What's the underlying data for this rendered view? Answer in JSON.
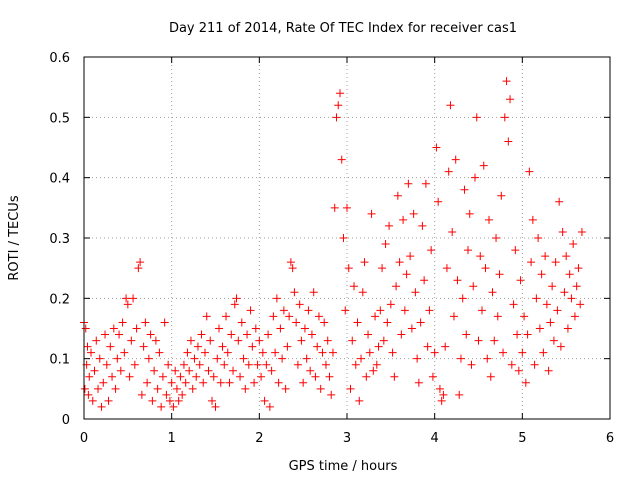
{
  "chart_data": {
    "type": "scatter",
    "title": "Day 211 of 2014, Rate Of TEC Index for receiver cas1",
    "xlabel": "GPS time / hours",
    "ylabel": "ROTI / TECUs",
    "xlim": [
      0,
      6
    ],
    "ylim": [
      0,
      0.6
    ],
    "xticks": [
      0,
      1,
      2,
      3,
      4,
      5,
      6
    ],
    "yticks": [
      0,
      0.1,
      0.2,
      0.3,
      0.4,
      0.5,
      0.6
    ],
    "xtick_labels": [
      "0",
      "1",
      "2",
      "3",
      "4",
      "5",
      "6"
    ],
    "ytick_labels": [
      "0",
      "0.1",
      "0.2",
      "0.3",
      "0.4",
      "0.5",
      "0.6"
    ],
    "grid": true,
    "marker": "+",
    "color": "#ff0000",
    "series": [
      {
        "name": "cas1",
        "points": [
          [
            0.0,
            0.16
          ],
          [
            0.01,
            0.05
          ],
          [
            0.02,
            0.15
          ],
          [
            0.03,
            0.09
          ],
          [
            0.04,
            0.12
          ],
          [
            0.05,
            0.04
          ],
          [
            0.06,
            0.07
          ],
          [
            0.08,
            0.11
          ],
          [
            0.1,
            0.03
          ],
          [
            0.12,
            0.08
          ],
          [
            0.14,
            0.13
          ],
          [
            0.16,
            0.05
          ],
          [
            0.18,
            0.1
          ],
          [
            0.2,
            0.02
          ],
          [
            0.22,
            0.06
          ],
          [
            0.24,
            0.14
          ],
          [
            0.26,
            0.09
          ],
          [
            0.28,
            0.03
          ],
          [
            0.3,
            0.12
          ],
          [
            0.32,
            0.07
          ],
          [
            0.34,
            0.15
          ],
          [
            0.36,
            0.05
          ],
          [
            0.38,
            0.1
          ],
          [
            0.4,
            0.14
          ],
          [
            0.42,
            0.08
          ],
          [
            0.44,
            0.16
          ],
          [
            0.46,
            0.11
          ],
          [
            0.48,
            0.2
          ],
          [
            0.5,
            0.19
          ],
          [
            0.52,
            0.07
          ],
          [
            0.54,
            0.13
          ],
          [
            0.56,
            0.2
          ],
          [
            0.58,
            0.09
          ],
          [
            0.6,
            0.15
          ],
          [
            0.62,
            0.25
          ],
          [
            0.64,
            0.26
          ],
          [
            0.66,
            0.04
          ],
          [
            0.68,
            0.12
          ],
          [
            0.7,
            0.16
          ],
          [
            0.72,
            0.06
          ],
          [
            0.74,
            0.1
          ],
          [
            0.76,
            0.14
          ],
          [
            0.78,
            0.03
          ],
          [
            0.8,
            0.08
          ],
          [
            0.82,
            0.13
          ],
          [
            0.84,
            0.05
          ],
          [
            0.86,
            0.11
          ],
          [
            0.88,
            0.02
          ],
          [
            0.9,
            0.07
          ],
          [
            0.92,
            0.16
          ],
          [
            0.94,
            0.04
          ],
          [
            0.96,
            0.09
          ],
          [
            0.98,
            0.03
          ],
          [
            1.0,
            0.06
          ],
          [
            1.02,
            0.02
          ],
          [
            1.04,
            0.08
          ],
          [
            1.06,
            0.05
          ],
          [
            1.08,
            0.03
          ],
          [
            1.1,
            0.07
          ],
          [
            1.12,
            0.04
          ],
          [
            1.14,
            0.09
          ],
          [
            1.16,
            0.06
          ],
          [
            1.18,
            0.11
          ],
          [
            1.2,
            0.08
          ],
          [
            1.22,
            0.13
          ],
          [
            1.24,
            0.05
          ],
          [
            1.26,
            0.1
          ],
          [
            1.28,
            0.07
          ],
          [
            1.3,
            0.12
          ],
          [
            1.32,
            0.09
          ],
          [
            1.34,
            0.14
          ],
          [
            1.36,
            0.06
          ],
          [
            1.38,
            0.11
          ],
          [
            1.4,
            0.17
          ],
          [
            1.42,
            0.08
          ],
          [
            1.44,
            0.13
          ],
          [
            1.46,
            0.03
          ],
          [
            1.48,
            0.07
          ],
          [
            1.5,
            0.02
          ],
          [
            1.52,
            0.1
          ],
          [
            1.54,
            0.15
          ],
          [
            1.56,
            0.06
          ],
          [
            1.58,
            0.12
          ],
          [
            1.6,
            0.09
          ],
          [
            1.62,
            0.17
          ],
          [
            1.64,
            0.11
          ],
          [
            1.66,
            0.06
          ],
          [
            1.68,
            0.14
          ],
          [
            1.7,
            0.08
          ],
          [
            1.72,
            0.19
          ],
          [
            1.74,
            0.2
          ],
          [
            1.76,
            0.13
          ],
          [
            1.78,
            0.07
          ],
          [
            1.8,
            0.16
          ],
          [
            1.82,
            0.1
          ],
          [
            1.84,
            0.05
          ],
          [
            1.86,
            0.14
          ],
          [
            1.88,
            0.09
          ],
          [
            1.9,
            0.18
          ],
          [
            1.92,
            0.12
          ],
          [
            1.94,
            0.06
          ],
          [
            1.96,
            0.15
          ],
          [
            1.98,
            0.09
          ],
          [
            2.0,
            0.13
          ],
          [
            2.02,
            0.07
          ],
          [
            2.04,
            0.11
          ],
          [
            2.06,
            0.03
          ],
          [
            2.08,
            0.09
          ],
          [
            2.1,
            0.14
          ],
          [
            2.12,
            0.02
          ],
          [
            2.14,
            0.08
          ],
          [
            2.16,
            0.17
          ],
          [
            2.18,
            0.11
          ],
          [
            2.2,
            0.2
          ],
          [
            2.22,
            0.06
          ],
          [
            2.24,
            0.15
          ],
          [
            2.26,
            0.1
          ],
          [
            2.28,
            0.18
          ],
          [
            2.3,
            0.05
          ],
          [
            2.32,
            0.12
          ],
          [
            2.34,
            0.17
          ],
          [
            2.36,
            0.26
          ],
          [
            2.38,
            0.25
          ],
          [
            2.4,
            0.21
          ],
          [
            2.42,
            0.16
          ],
          [
            2.44,
            0.09
          ],
          [
            2.46,
            0.19
          ],
          [
            2.48,
            0.13
          ],
          [
            2.5,
            0.06
          ],
          [
            2.52,
            0.15
          ],
          [
            2.54,
            0.1
          ],
          [
            2.56,
            0.18
          ],
          [
            2.58,
            0.08
          ],
          [
            2.6,
            0.14
          ],
          [
            2.62,
            0.21
          ],
          [
            2.64,
            0.07
          ],
          [
            2.66,
            0.12
          ],
          [
            2.68,
            0.17
          ],
          [
            2.7,
            0.05
          ],
          [
            2.72,
            0.11
          ],
          [
            2.74,
            0.16
          ],
          [
            2.76,
            0.09
          ],
          [
            2.78,
            0.13
          ],
          [
            2.8,
            0.07
          ],
          [
            2.82,
            0.04
          ],
          [
            2.84,
            0.11
          ],
          [
            2.86,
            0.35
          ],
          [
            2.88,
            0.5
          ],
          [
            2.9,
            0.52
          ],
          [
            2.92,
            0.54
          ],
          [
            2.94,
            0.43
          ],
          [
            2.96,
            0.3
          ],
          [
            2.98,
            0.18
          ],
          [
            3.0,
            0.35
          ],
          [
            3.02,
            0.25
          ],
          [
            3.04,
            0.05
          ],
          [
            3.06,
            0.13
          ],
          [
            3.08,
            0.22
          ],
          [
            3.1,
            0.09
          ],
          [
            3.12,
            0.16
          ],
          [
            3.14,
            0.03
          ],
          [
            3.16,
            0.1
          ],
          [
            3.18,
            0.21
          ],
          [
            3.2,
            0.26
          ],
          [
            3.22,
            0.07
          ],
          [
            3.24,
            0.14
          ],
          [
            3.26,
            0.11
          ],
          [
            3.28,
            0.34
          ],
          [
            3.3,
            0.08
          ],
          [
            3.32,
            0.17
          ],
          [
            3.34,
            0.09
          ],
          [
            3.36,
            0.12
          ],
          [
            3.38,
            0.18
          ],
          [
            3.4,
            0.25
          ],
          [
            3.42,
            0.13
          ],
          [
            3.44,
            0.29
          ],
          [
            3.46,
            0.16
          ],
          [
            3.48,
            0.32
          ],
          [
            3.5,
            0.19
          ],
          [
            3.52,
            0.11
          ],
          [
            3.54,
            0.07
          ],
          [
            3.56,
            0.22
          ],
          [
            3.58,
            0.37
          ],
          [
            3.6,
            0.26
          ],
          [
            3.62,
            0.14
          ],
          [
            3.64,
            0.33
          ],
          [
            3.66,
            0.18
          ],
          [
            3.68,
            0.24
          ],
          [
            3.7,
            0.39
          ],
          [
            3.72,
            0.27
          ],
          [
            3.74,
            0.15
          ],
          [
            3.76,
            0.34
          ],
          [
            3.78,
            0.21
          ],
          [
            3.8,
            0.1
          ],
          [
            3.82,
            0.06
          ],
          [
            3.84,
            0.16
          ],
          [
            3.86,
            0.32
          ],
          [
            3.88,
            0.23
          ],
          [
            3.9,
            0.39
          ],
          [
            3.92,
            0.12
          ],
          [
            3.94,
            0.18
          ],
          [
            3.96,
            0.28
          ],
          [
            3.98,
            0.07
          ],
          [
            4.0,
            0.11
          ],
          [
            4.02,
            0.45
          ],
          [
            4.04,
            0.36
          ],
          [
            4.06,
            0.05
          ],
          [
            4.08,
            0.03
          ],
          [
            4.1,
            0.04
          ],
          [
            4.12,
            0.12
          ],
          [
            4.14,
            0.25
          ],
          [
            4.16,
            0.41
          ],
          [
            4.18,
            0.52
          ],
          [
            4.2,
            0.31
          ],
          [
            4.22,
            0.17
          ],
          [
            4.24,
            0.43
          ],
          [
            4.26,
            0.23
          ],
          [
            4.28,
            0.04
          ],
          [
            4.3,
            0.1
          ],
          [
            4.32,
            0.2
          ],
          [
            4.34,
            0.38
          ],
          [
            4.36,
            0.14
          ],
          [
            4.38,
            0.28
          ],
          [
            4.4,
            0.34
          ],
          [
            4.42,
            0.09
          ],
          [
            4.44,
            0.22
          ],
          [
            4.46,
            0.4
          ],
          [
            4.48,
            0.5
          ],
          [
            4.5,
            0.13
          ],
          [
            4.52,
            0.27
          ],
          [
            4.54,
            0.18
          ],
          [
            4.56,
            0.42
          ],
          [
            4.58,
            0.25
          ],
          [
            4.6,
            0.1
          ],
          [
            4.62,
            0.33
          ],
          [
            4.64,
            0.07
          ],
          [
            4.66,
            0.21
          ],
          [
            4.68,
            0.13
          ],
          [
            4.7,
            0.3
          ],
          [
            4.72,
            0.17
          ],
          [
            4.74,
            0.24
          ],
          [
            4.76,
            0.37
          ],
          [
            4.78,
            0.11
          ],
          [
            4.8,
            0.5
          ],
          [
            4.82,
            0.56
          ],
          [
            4.84,
            0.46
          ],
          [
            4.86,
            0.53
          ],
          [
            4.88,
            0.09
          ],
          [
            4.9,
            0.19
          ],
          [
            4.92,
            0.28
          ],
          [
            4.94,
            0.14
          ],
          [
            4.96,
            0.08
          ],
          [
            4.98,
            0.23
          ],
          [
            5.0,
            0.11
          ],
          [
            5.02,
            0.17
          ],
          [
            5.04,
            0.06
          ],
          [
            5.06,
            0.14
          ],
          [
            5.08,
            0.41
          ],
          [
            5.1,
            0.26
          ],
          [
            5.12,
            0.33
          ],
          [
            5.14,
            0.09
          ],
          [
            5.16,
            0.2
          ],
          [
            5.18,
            0.3
          ],
          [
            5.2,
            0.15
          ],
          [
            5.22,
            0.24
          ],
          [
            5.24,
            0.11
          ],
          [
            5.26,
            0.27
          ],
          [
            5.28,
            0.19
          ],
          [
            5.3,
            0.08
          ],
          [
            5.32,
            0.16
          ],
          [
            5.34,
            0.22
          ],
          [
            5.36,
            0.13
          ],
          [
            5.38,
            0.26
          ],
          [
            5.4,
            0.18
          ],
          [
            5.42,
            0.36
          ],
          [
            5.44,
            0.12
          ],
          [
            5.46,
            0.31
          ],
          [
            5.48,
            0.21
          ],
          [
            5.5,
            0.27
          ],
          [
            5.52,
            0.15
          ],
          [
            5.54,
            0.24
          ],
          [
            5.56,
            0.2
          ],
          [
            5.58,
            0.29
          ],
          [
            5.6,
            0.17
          ],
          [
            5.62,
            0.22
          ],
          [
            5.64,
            0.25
          ],
          [
            5.66,
            0.19
          ],
          [
            5.68,
            0.31
          ]
        ]
      }
    ]
  }
}
